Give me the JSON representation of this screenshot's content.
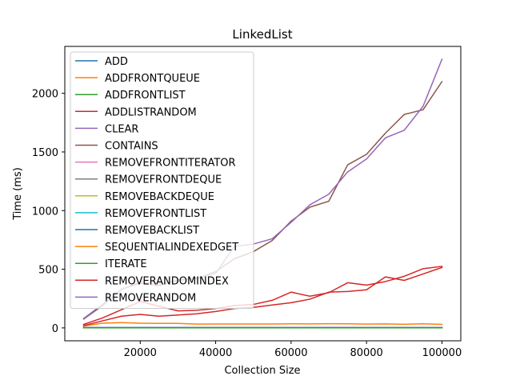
{
  "chart_data": {
    "type": "line",
    "title": "LinkedList",
    "xlabel": "Collection Size",
    "ylabel": "Time (ms)",
    "xlim": [
      0,
      105000
    ],
    "ylim": [
      -110,
      2400
    ],
    "xticks": [
      20000,
      40000,
      60000,
      80000,
      100000
    ],
    "yticks": [
      0,
      500,
      1000,
      1500,
      2000
    ],
    "grid": false,
    "legend_position": "upper-left",
    "x": [
      5000,
      10000,
      15000,
      20000,
      25000,
      30000,
      35000,
      40000,
      45000,
      50000,
      55000,
      60000,
      65000,
      70000,
      75000,
      80000,
      85000,
      90000,
      95000,
      100000
    ],
    "series": [
      {
        "name": "ADD",
        "color": "#1f77b4",
        "values": [
          3,
          3,
          3,
          3,
          3,
          3,
          3,
          3,
          3,
          3,
          3,
          3,
          3,
          3,
          3,
          3,
          3,
          3,
          3,
          3
        ]
      },
      {
        "name": "ADDFRONTQUEUE",
        "color": "#ff7f0e",
        "values": [
          2,
          2,
          2,
          2,
          2,
          2,
          2,
          2,
          2,
          2,
          2,
          2,
          2,
          2,
          2,
          2,
          2,
          2,
          2,
          2
        ]
      },
      {
        "name": "ADDFRONTLIST",
        "color": "#2ca02c",
        "values": [
          1,
          1,
          1,
          1,
          1,
          1,
          1,
          1,
          1,
          1,
          1,
          1,
          1,
          1,
          1,
          1,
          1,
          1,
          1,
          1
        ]
      },
      {
        "name": "ADDLISTRANDOM",
        "color": "#d62728",
        "values": [
          30,
          85,
          155,
          225,
          185,
          145,
          150,
          165,
          190,
          200,
          235,
          305,
          270,
          300,
          385,
          365,
          395,
          440,
          505,
          525
        ]
      },
      {
        "name": "CLEAR",
        "color": "#9467bd",
        "values": [
          2,
          2,
          2,
          2,
          2,
          2,
          2,
          2,
          2,
          2,
          2,
          2,
          2,
          2,
          2,
          2,
          2,
          2,
          2,
          2
        ]
      },
      {
        "name": "CONTAINS",
        "color": "#8c564b",
        "values": [
          75,
          190,
          330,
          380,
          360,
          410,
          420,
          480,
          590,
          650,
          745,
          910,
          1030,
          1080,
          1390,
          1480,
          1660,
          1820,
          1860,
          2100
        ]
      },
      {
        "name": "REMOVEFRONTITERATOR",
        "color": "#e377c2",
        "values": [
          2,
          2,
          2,
          2,
          2,
          2,
          2,
          2,
          2,
          2,
          2,
          2,
          2,
          2,
          2,
          2,
          2,
          2,
          2,
          2
        ]
      },
      {
        "name": "REMOVEFRONTDEQUE",
        "color": "#7f7f7f",
        "values": [
          1,
          1,
          1,
          1,
          1,
          1,
          1,
          1,
          1,
          1,
          1,
          1,
          1,
          1,
          1,
          1,
          1,
          1,
          1,
          1
        ]
      },
      {
        "name": "REMOVEBACKDEQUE",
        "color": "#bcbd22",
        "values": [
          1,
          1,
          1,
          1,
          1,
          1,
          1,
          1,
          1,
          1,
          1,
          1,
          1,
          1,
          1,
          1,
          1,
          1,
          1,
          1
        ]
      },
      {
        "name": "REMOVEFRONTLIST",
        "color": "#17becf",
        "values": [
          2,
          2,
          2,
          2,
          2,
          2,
          2,
          2,
          2,
          2,
          2,
          2,
          2,
          2,
          2,
          2,
          2,
          2,
          2,
          2
        ]
      },
      {
        "name": "REMOVEBACKLIST",
        "color": "#1f77b4",
        "values": [
          2,
          2,
          2,
          2,
          2,
          2,
          2,
          2,
          2,
          2,
          2,
          2,
          2,
          2,
          2,
          2,
          2,
          2,
          2,
          2
        ]
      },
      {
        "name": "SEQUENTIALINDEXEDGET",
        "color": "#ff7f0e",
        "values": [
          15,
          40,
          45,
          40,
          38,
          38,
          32,
          33,
          33,
          33,
          33,
          35,
          34,
          36,
          35,
          32,
          34,
          31,
          35,
          30
        ]
      },
      {
        "name": "ITERATE",
        "color": "#2ca02c",
        "values": [
          1,
          1,
          1,
          1,
          1,
          1,
          1,
          1,
          1,
          1,
          1,
          1,
          1,
          1,
          1,
          1,
          1,
          1,
          1,
          1
        ]
      },
      {
        "name": "REMOVERANDOMINDEX",
        "color": "#d62728",
        "values": [
          20,
          60,
          100,
          115,
          100,
          110,
          120,
          140,
          165,
          175,
          195,
          215,
          245,
          305,
          310,
          325,
          435,
          405,
          460,
          515
        ]
      },
      {
        "name": "REMOVERANDOM",
        "color": "#9467bd",
        "values": [
          80,
          200,
          325,
          395,
          375,
          400,
          425,
          465,
          695,
          715,
          760,
          900,
          1050,
          1140,
          1330,
          1440,
          1620,
          1685,
          1890,
          2290
        ]
      }
    ]
  }
}
